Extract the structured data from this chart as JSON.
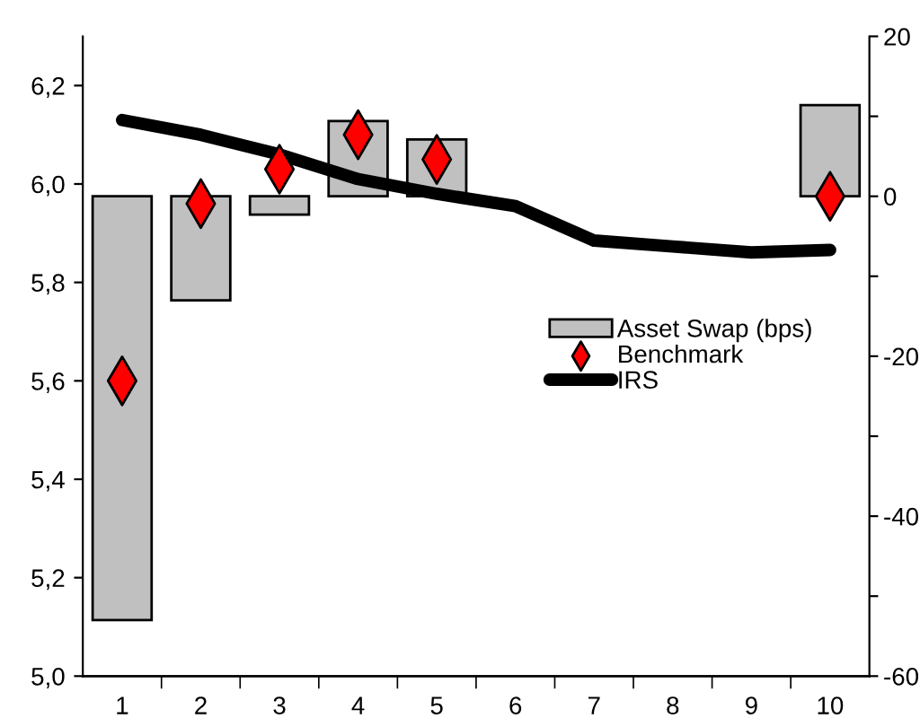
{
  "chart_data": {
    "type": "bar",
    "categories": [
      "1",
      "2",
      "3",
      "4",
      "5",
      "6",
      "7",
      "8",
      "9",
      "10"
    ],
    "series": [
      {
        "name": "Asset Swap (bps)",
        "axis": "y2",
        "color": "#c0c0c0",
        "values": [
          -53,
          -13,
          -2.3,
          9.4,
          7.1,
          null,
          null,
          null,
          null,
          11.4
        ]
      },
      {
        "name": "Benchmark",
        "type": "scatter",
        "marker": "diamond",
        "color": "#ff0000",
        "values": [
          5.6,
          5.96,
          6.03,
          6.1,
          6.05,
          null,
          null,
          null,
          null,
          5.975
        ]
      },
      {
        "name": "IRS",
        "type": "line",
        "color": "#000000",
        "values": [
          6.13,
          6.1,
          6.06,
          6.01,
          5.98,
          5.955,
          5.885,
          5.873,
          5.861,
          5.866
        ]
      }
    ],
    "ylim": [
      5.0,
      6.3
    ],
    "yticks": [
      {
        "value": 5.0,
        "label": "5,0"
      },
      {
        "value": 5.2,
        "label": "5,2"
      },
      {
        "value": 5.4,
        "label": "5,4"
      },
      {
        "value": 5.6,
        "label": "5,6"
      },
      {
        "value": 5.8,
        "label": "5,8"
      },
      {
        "value": 6.0,
        "label": "6,0"
      },
      {
        "value": 6.2,
        "label": "6,2"
      }
    ],
    "y2lim": [
      -60,
      20
    ],
    "y2ticks": [
      20,
      {
        "value": 10,
        "label": null
      },
      0,
      {
        "value": -10,
        "label": null
      },
      -20,
      {
        "value": -30,
        "label": null
      },
      -40,
      {
        "value": -50,
        "label": null
      },
      -60
    ],
    "grid": false,
    "legend": "right"
  }
}
